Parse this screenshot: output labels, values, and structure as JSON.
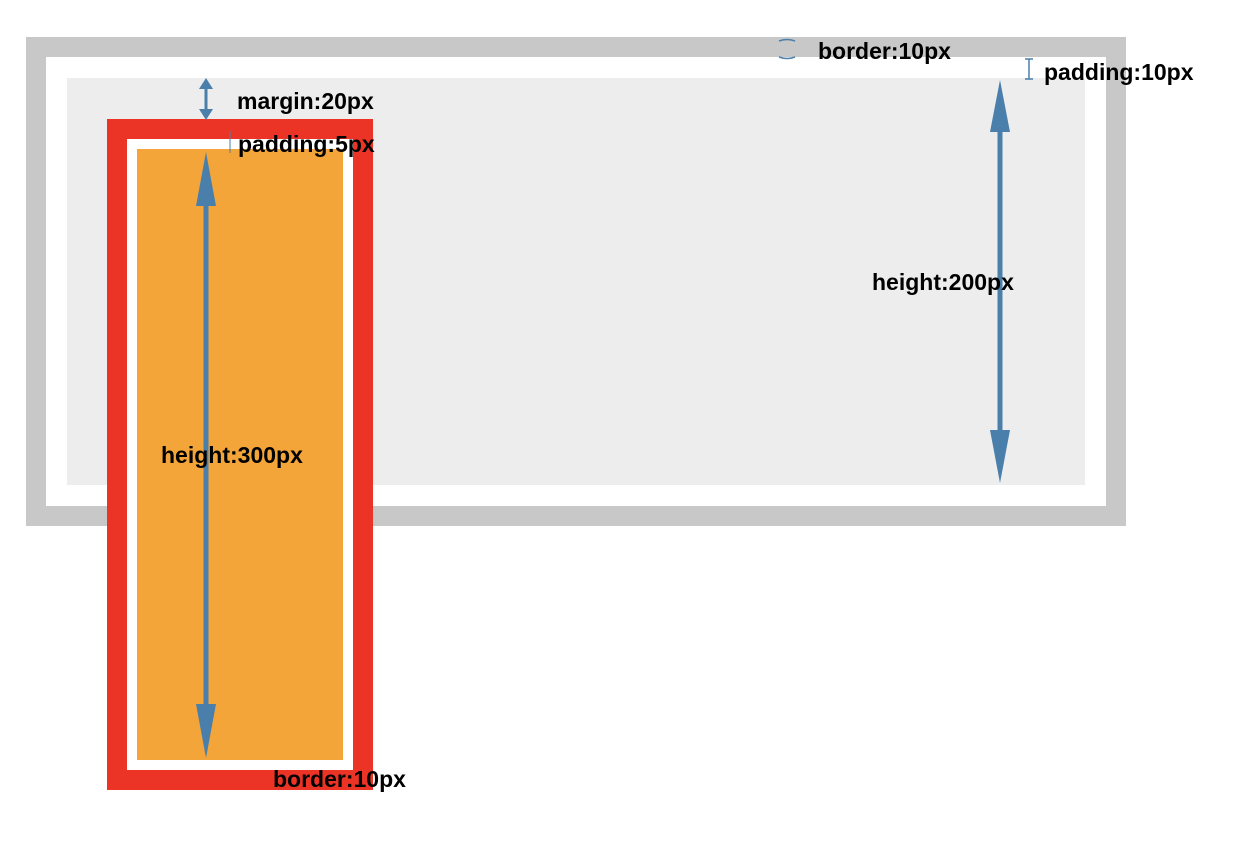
{
  "colors": {
    "outer_border": "#c8c8c8",
    "outer_padding": "#ffffff",
    "outer_content": "#ededed",
    "inner_border": "#ec3426",
    "inner_padding": "#ffffff",
    "inner_content": "#f3a53a",
    "arrow": "#4a7fab"
  },
  "labels": {
    "outer_border": "border:10px",
    "outer_padding": "padding:10px",
    "outer_height": "height:200px",
    "inner_margin": "margin:20px",
    "inner_padding": "padding:5px",
    "inner_height": "height:300px",
    "inner_border": "border:10px"
  }
}
